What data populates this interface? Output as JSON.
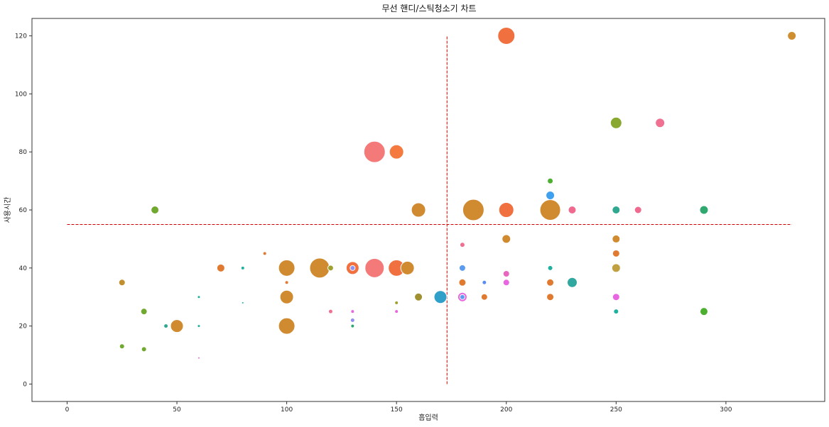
{
  "chart_data": {
    "type": "scatter",
    "title": "무선 핸디/스틱청소기 차트",
    "xlabel": "흡입력",
    "ylabel": "사용시간",
    "xlim": [
      -16,
      345
    ],
    "ylim": [
      -6,
      126
    ],
    "xticks": [
      "0",
      "50",
      "100",
      "150",
      "200",
      "250",
      "300"
    ],
    "yticks": [
      "0",
      "20",
      "40",
      "60",
      "80",
      "100",
      "120"
    ],
    "reference_lines": {
      "x": 173,
      "y": 55,
      "color": "#cc0000",
      "style": "dashed"
    },
    "points": [
      {
        "x": 200,
        "y": 120,
        "s": 24,
        "color": "#f07040"
      },
      {
        "x": 330,
        "y": 120,
        "s": 12,
        "color": "#cf8f30"
      },
      {
        "x": 140,
        "y": 80,
        "s": 30,
        "color": "#f47a7a"
      },
      {
        "x": 150,
        "y": 80,
        "s": 20,
        "color": "#f47a40"
      },
      {
        "x": 250,
        "y": 90,
        "s": 16,
        "color": "#89a830"
      },
      {
        "x": 270,
        "y": 90,
        "s": 13,
        "color": "#ef7090"
      },
      {
        "x": 220,
        "y": 70,
        "s": 8,
        "color": "#4caf30"
      },
      {
        "x": 220,
        "y": 65,
        "s": 12,
        "color": "#40a0f0"
      },
      {
        "x": 40,
        "y": 60,
        "s": 11,
        "color": "#70a830"
      },
      {
        "x": 160,
        "y": 60,
        "s": 20,
        "color": "#d08a30"
      },
      {
        "x": 185,
        "y": 60,
        "s": 30,
        "color": "#d08a30"
      },
      {
        "x": 200,
        "y": 60,
        "s": 21,
        "color": "#f07040"
      },
      {
        "x": 220,
        "y": 60,
        "s": 29,
        "color": "#d08a30"
      },
      {
        "x": 230,
        "y": 60,
        "s": 11,
        "color": "#f06a90"
      },
      {
        "x": 250,
        "y": 60,
        "s": 11,
        "color": "#30a890"
      },
      {
        "x": 260,
        "y": 60,
        "s": 10,
        "color": "#f06a90"
      },
      {
        "x": 290,
        "y": 60,
        "s": 12,
        "color": "#30a870"
      },
      {
        "x": 90,
        "y": 45,
        "s": 5,
        "color": "#e07a30"
      },
      {
        "x": 200,
        "y": 50,
        "s": 12,
        "color": "#d08a30"
      },
      {
        "x": 250,
        "y": 50,
        "s": 11,
        "color": "#d08a30"
      },
      {
        "x": 250,
        "y": 45,
        "s": 10,
        "color": "#e07a30"
      },
      {
        "x": 180,
        "y": 48,
        "s": 7,
        "color": "#ef7090"
      },
      {
        "x": 70,
        "y": 40,
        "s": 11,
        "color": "#e07a30"
      },
      {
        "x": 80,
        "y": 40,
        "s": 5,
        "color": "#20b0a0"
      },
      {
        "x": 100,
        "y": 40,
        "s": 23,
        "color": "#d08a30"
      },
      {
        "x": 115,
        "y": 40,
        "s": 28,
        "color": "#d08a30"
      },
      {
        "x": 120,
        "y": 40,
        "s": 8,
        "color": "#a0a030"
      },
      {
        "x": 130,
        "y": 40,
        "s": 18,
        "color": "#f07040"
      },
      {
        "x": 130,
        "y": 40,
        "s": 7,
        "color": "#9090f0"
      },
      {
        "x": 140,
        "y": 40,
        "s": 27,
        "color": "#f47a7a"
      },
      {
        "x": 150,
        "y": 40,
        "s": 23,
        "color": "#f07040"
      },
      {
        "x": 155,
        "y": 40,
        "s": 19,
        "color": "#d08a30"
      },
      {
        "x": 180,
        "y": 40,
        "s": 9,
        "color": "#5b9cf0"
      },
      {
        "x": 200,
        "y": 38,
        "s": 9,
        "color": "#e866c0"
      },
      {
        "x": 220,
        "y": 40,
        "s": 7,
        "color": "#20b0a0"
      },
      {
        "x": 250,
        "y": 40,
        "s": 12,
        "color": "#c0a040"
      },
      {
        "x": 25,
        "y": 35,
        "s": 9,
        "color": "#c09030"
      },
      {
        "x": 100,
        "y": 35,
        "s": 5,
        "color": "#e07a30"
      },
      {
        "x": 180,
        "y": 35,
        "s": 10,
        "color": "#e07a30"
      },
      {
        "x": 190,
        "y": 35,
        "s": 6,
        "color": "#5b8cf0"
      },
      {
        "x": 200,
        "y": 35,
        "s": 9,
        "color": "#e866e0"
      },
      {
        "x": 220,
        "y": 35,
        "s": 10,
        "color": "#e07a30"
      },
      {
        "x": 230,
        "y": 35,
        "s": 14,
        "color": "#30a8a0"
      },
      {
        "x": 60,
        "y": 30,
        "s": 4,
        "color": "#20b0a0"
      },
      {
        "x": 80,
        "y": 28,
        "s": 3,
        "color": "#20b0a0"
      },
      {
        "x": 100,
        "y": 30,
        "s": 19,
        "color": "#d08a30"
      },
      {
        "x": 150,
        "y": 28,
        "s": 5,
        "color": "#a0a030"
      },
      {
        "x": 160,
        "y": 30,
        "s": 11,
        "color": "#a09030"
      },
      {
        "x": 170,
        "y": 30,
        "s": 18,
        "color": "#30a0c8"
      },
      {
        "x": 180,
        "y": 30,
        "s": 13,
        "color": "#e866e0"
      },
      {
        "x": 180,
        "y": 30,
        "s": 7,
        "color": "#5b9cf0"
      },
      {
        "x": 190,
        "y": 30,
        "s": 9,
        "color": "#e07a30"
      },
      {
        "x": 220,
        "y": 30,
        "s": 10,
        "color": "#e07a30"
      },
      {
        "x": 250,
        "y": 30,
        "s": 10,
        "color": "#e866e0"
      },
      {
        "x": 35,
        "y": 25,
        "s": 9,
        "color": "#70a830"
      },
      {
        "x": 120,
        "y": 25,
        "s": 6,
        "color": "#ef7090"
      },
      {
        "x": 130,
        "y": 25,
        "s": 5,
        "color": "#e866e0"
      },
      {
        "x": 130,
        "y": 22,
        "s": 6,
        "color": "#9090f0"
      },
      {
        "x": 150,
        "y": 25,
        "s": 5,
        "color": "#e866e0"
      },
      {
        "x": 250,
        "y": 25,
        "s": 7,
        "color": "#20b0a0"
      },
      {
        "x": 290,
        "y": 25,
        "s": 11,
        "color": "#4caf30"
      },
      {
        "x": 45,
        "y": 20,
        "s": 6,
        "color": "#30a890"
      },
      {
        "x": 50,
        "y": 20,
        "s": 18,
        "color": "#d08a30"
      },
      {
        "x": 60,
        "y": 20,
        "s": 4,
        "color": "#20b0a0"
      },
      {
        "x": 100,
        "y": 20,
        "s": 23,
        "color": "#d08a30"
      },
      {
        "x": 130,
        "y": 20,
        "s": 5,
        "color": "#30a870"
      },
      {
        "x": 25,
        "y": 13,
        "s": 7,
        "color": "#70a830"
      },
      {
        "x": 35,
        "y": 12,
        "s": 7,
        "color": "#70a830"
      },
      {
        "x": 60,
        "y": 9,
        "s": 3,
        "color": "#e866e0"
      }
    ]
  }
}
